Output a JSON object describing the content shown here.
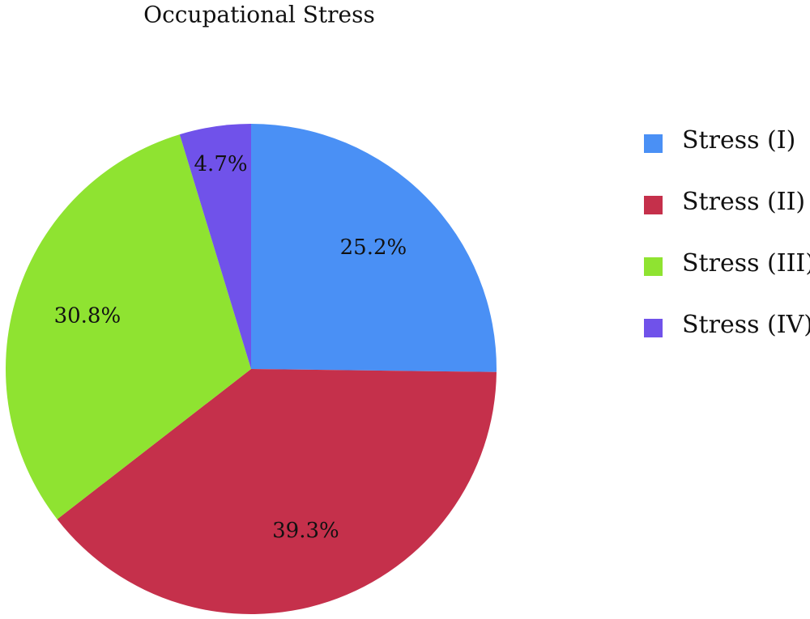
{
  "chart_data": {
    "type": "pie",
    "title": "Occupational Stress",
    "categories": [
      "Stress (I)",
      "Stress (II)",
      "Stress (III)",
      "Stress (IV)"
    ],
    "values": [
      25.2,
      39.3,
      30.8,
      4.7
    ],
    "value_labels": [
      "25.2%",
      "39.3%",
      "30.8%",
      "4.7%"
    ],
    "colors": [
      "#4a90f5",
      "#c5304b",
      "#8fe331",
      "#7052ea"
    ]
  }
}
